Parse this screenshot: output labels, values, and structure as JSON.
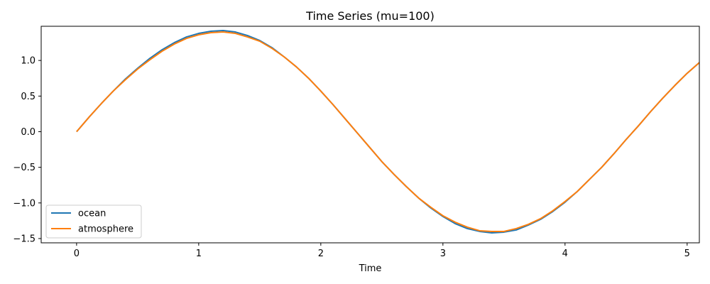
{
  "chart_data": {
    "type": "line",
    "title": "Time Series (mu=100)",
    "xlabel": "Time",
    "ylabel": "",
    "xlim": [
      -0.29,
      5.1
    ],
    "ylim": [
      -1.56,
      1.48
    ],
    "xticks": [
      0,
      1,
      2,
      3,
      4,
      5
    ],
    "xtick_labels": [
      "0",
      "1",
      "2",
      "3",
      "4",
      "5"
    ],
    "yticks": [
      -1.5,
      -1.0,
      -0.5,
      0.0,
      0.5,
      1.0
    ],
    "ytick_labels": [
      "−1.5",
      "−1.0",
      "−0.5",
      "0.0",
      "0.5",
      "1.0"
    ],
    "grid": false,
    "legend": {
      "placement": "lower-left"
    },
    "series": [
      {
        "name": "ocean",
        "color": "#1f77b4",
        "x": [
          0,
          0.1,
          0.2,
          0.3,
          0.4,
          0.5,
          0.6,
          0.7,
          0.8,
          0.9,
          1.0,
          1.1,
          1.2,
          1.3,
          1.4,
          1.5,
          1.6,
          1.7,
          1.8,
          1.9,
          2.0,
          2.1,
          2.2,
          2.3,
          2.4,
          2.5,
          2.6,
          2.7,
          2.8,
          2.9,
          3.0,
          3.1,
          3.2,
          3.3,
          3.4,
          3.5,
          3.6,
          3.7,
          3.8,
          3.9,
          4.0,
          4.1,
          4.2,
          4.3,
          4.4,
          4.5,
          4.6,
          4.7,
          4.8,
          4.9,
          5.0,
          5.1
        ],
        "y": [
          0.0,
          0.2,
          0.39,
          0.57,
          0.74,
          0.89,
          1.03,
          1.15,
          1.25,
          1.33,
          1.38,
          1.41,
          1.42,
          1.4,
          1.35,
          1.28,
          1.18,
          1.05,
          0.91,
          0.75,
          0.57,
          0.38,
          0.18,
          -0.02,
          -0.22,
          -0.42,
          -0.6,
          -0.77,
          -0.93,
          -1.07,
          -1.19,
          -1.29,
          -1.36,
          -1.4,
          -1.42,
          -1.41,
          -1.38,
          -1.31,
          -1.23,
          -1.12,
          -0.99,
          -0.84,
          -0.67,
          -0.5,
          -0.31,
          -0.11,
          0.08,
          0.28,
          0.47,
          0.65,
          0.82,
          0.97
        ]
      },
      {
        "name": "atmosphere",
        "color": "#ff7f0e",
        "x": [
          0,
          0.1,
          0.2,
          0.3,
          0.4,
          0.5,
          0.6,
          0.7,
          0.8,
          0.9,
          1.0,
          1.1,
          1.2,
          1.3,
          1.4,
          1.5,
          1.6,
          1.7,
          1.8,
          1.9,
          2.0,
          2.1,
          2.2,
          2.3,
          2.4,
          2.5,
          2.6,
          2.7,
          2.8,
          2.9,
          3.0,
          3.1,
          3.2,
          3.3,
          3.4,
          3.5,
          3.6,
          3.7,
          3.8,
          3.9,
          4.0,
          4.1,
          4.2,
          4.3,
          4.4,
          4.5,
          4.6,
          4.7,
          4.8,
          4.9,
          5.0,
          5.1
        ],
        "y": [
          0.0,
          0.2,
          0.39,
          0.57,
          0.73,
          0.88,
          1.01,
          1.13,
          1.23,
          1.31,
          1.36,
          1.39,
          1.4,
          1.38,
          1.33,
          1.27,
          1.17,
          1.05,
          0.91,
          0.75,
          0.57,
          0.38,
          0.18,
          -0.02,
          -0.22,
          -0.42,
          -0.6,
          -0.77,
          -0.93,
          -1.06,
          -1.18,
          -1.27,
          -1.34,
          -1.39,
          -1.4,
          -1.4,
          -1.36,
          -1.3,
          -1.22,
          -1.11,
          -0.98,
          -0.84,
          -0.67,
          -0.5,
          -0.31,
          -0.11,
          0.08,
          0.28,
          0.47,
          0.65,
          0.82,
          0.97
        ]
      }
    ]
  }
}
